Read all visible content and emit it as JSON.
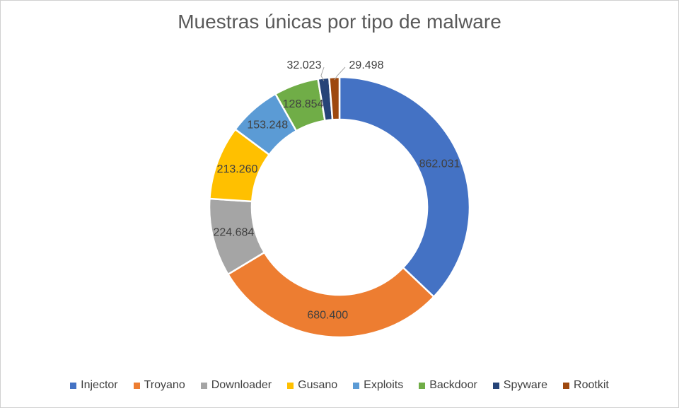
{
  "chart_data": {
    "type": "pie",
    "variant": "donut",
    "title": "Muestras únicas por tipo de malware",
    "categories": [
      "Injector",
      "Troyano",
      "Downloader",
      "Gusano",
      "Exploits",
      "Backdoor",
      "Spyware",
      "Rootkit"
    ],
    "values": [
      862031,
      680400,
      224684,
      213260,
      153248,
      128854,
      32023,
      29498
    ],
    "value_labels": [
      "862.031",
      "680.400",
      "224.684",
      "213.260",
      "153.248",
      "128.854",
      "32.023",
      "29.498"
    ],
    "colors": [
      "#4472C4",
      "#ED7D31",
      "#A5A5A5",
      "#FFC000",
      "#5B9BD5",
      "#70AD47",
      "#264478",
      "#9E480E"
    ],
    "legend": "bottom"
  }
}
